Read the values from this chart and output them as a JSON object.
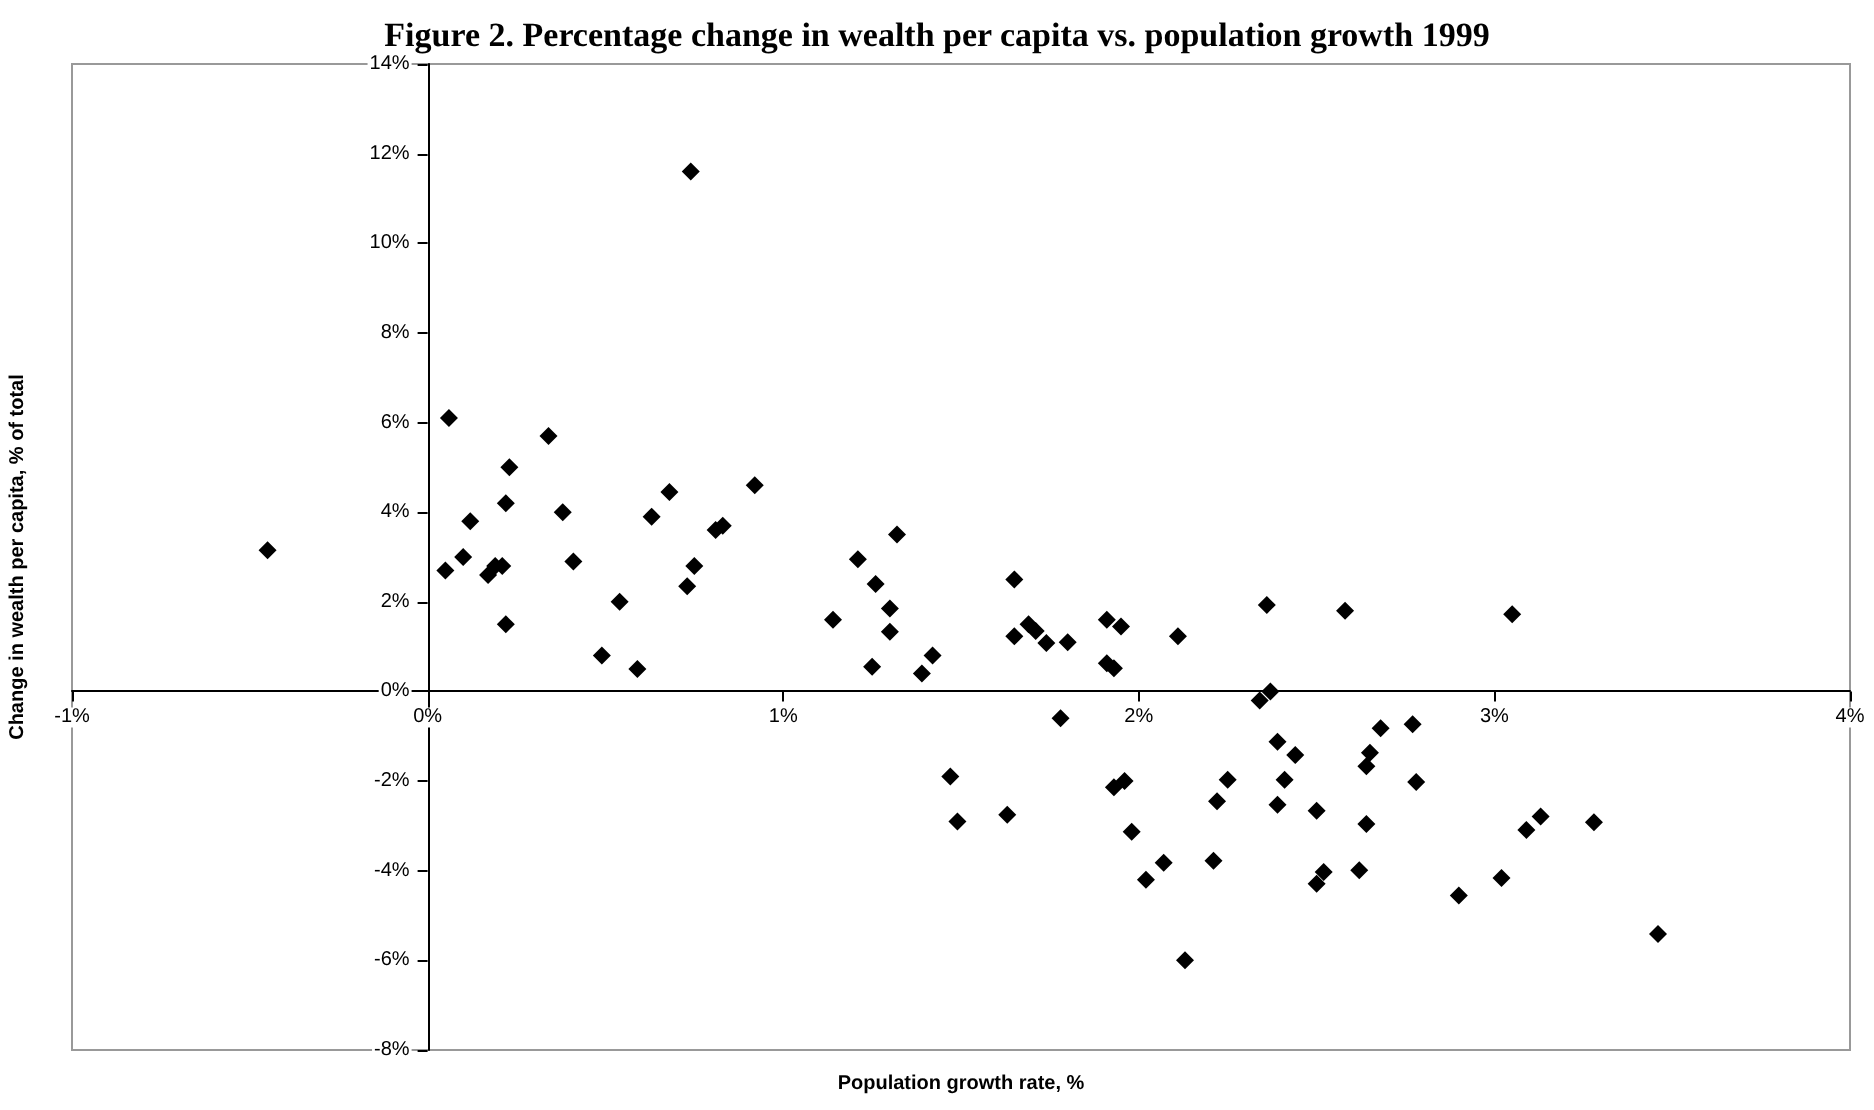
{
  "chart_data": {
    "type": "scatter",
    "title": "Figure 2. Percentage change in wealth per capita vs. population growth 1999",
    "xlabel": "Population growth rate, %",
    "ylabel": "Change in wealth per capita, % of total",
    "marker": "diamond",
    "grid": false,
    "xlim": [
      -1,
      4
    ],
    "ylim": [
      -8,
      14
    ],
    "xticks": [
      {
        "value": -1,
        "label": "-1%"
      },
      {
        "value": 0,
        "label": "0%"
      },
      {
        "value": 1,
        "label": "1%"
      },
      {
        "value": 2,
        "label": "2%"
      },
      {
        "value": 3,
        "label": "3%"
      },
      {
        "value": 4,
        "label": "4%"
      }
    ],
    "yticks": [
      {
        "value": -8,
        "label": "-8%"
      },
      {
        "value": -6,
        "label": "-6%"
      },
      {
        "value": -4,
        "label": "-4%"
      },
      {
        "value": -2,
        "label": "-2%"
      },
      {
        "value": 0,
        "label": "0%"
      },
      {
        "value": 2,
        "label": "2%"
      },
      {
        "value": 4,
        "label": "4%"
      },
      {
        "value": 6,
        "label": "6%"
      },
      {
        "value": 8,
        "label": "8%"
      },
      {
        "value": 10,
        "label": "10%"
      },
      {
        "value": 12,
        "label": "12%"
      },
      {
        "value": 14,
        "label": "14%"
      }
    ],
    "series": [
      {
        "color": "#000000",
        "x": [
          -0.45,
          0.05,
          0.06,
          0.1,
          0.12,
          0.17,
          0.19,
          0.21,
          0.22,
          0.22,
          0.23,
          0.34,
          0.38,
          0.41,
          0.49,
          0.54,
          0.59,
          0.63,
          0.68,
          0.73,
          0.74,
          0.75,
          0.81,
          0.83,
          0.92,
          1.14,
          1.21,
          1.26,
          1.25,
          1.3,
          1.3,
          1.32,
          1.39,
          1.42,
          1.65,
          1.65,
          1.69,
          1.71,
          1.74,
          1.8,
          1.91,
          1.95,
          1.91,
          1.93,
          2.11,
          2.36,
          2.58,
          2.37,
          2.34,
          3.05,
          1.78,
          1.47,
          1.49,
          1.63,
          1.93,
          1.96,
          1.98,
          2.02,
          2.07,
          2.13,
          2.21,
          2.22,
          2.25,
          2.39,
          2.44,
          2.41,
          2.39,
          2.5,
          2.52,
          2.5,
          2.62,
          2.64,
          2.64,
          2.65,
          2.68,
          2.77,
          2.78,
          2.9,
          3.02,
          3.09,
          3.13,
          3.28,
          3.46
        ],
        "values": [
          3.15,
          2.7,
          6.1,
          3.0,
          3.8,
          2.6,
          2.8,
          2.8,
          1.5,
          4.2,
          5.0,
          5.7,
          4.0,
          2.9,
          0.8,
          2.0,
          0.5,
          3.9,
          4.45,
          2.35,
          11.6,
          2.8,
          3.6,
          3.7,
          4.6,
          1.6,
          2.95,
          2.4,
          0.55,
          1.85,
          1.33,
          3.5,
          0.4,
          0.8,
          2.5,
          1.23,
          1.5,
          1.35,
          1.08,
          1.1,
          1.6,
          1.45,
          0.63,
          0.52,
          1.23,
          1.93,
          1.8,
          0.0,
          -0.2,
          1.72,
          -0.6,
          -1.9,
          -2.9,
          -2.75,
          -2.14,
          -2.0,
          -3.13,
          -4.2,
          -3.82,
          -6.0,
          -3.78,
          -2.45,
          -1.97,
          -1.12,
          -1.42,
          -1.97,
          -2.53,
          -2.66,
          -4.03,
          -4.29,
          -3.99,
          -2.96,
          -1.67,
          -1.37,
          -0.82,
          -0.73,
          -2.02,
          -4.55,
          -4.16,
          -3.09,
          -2.79,
          -2.92,
          -5.41
        ]
      }
    ]
  }
}
